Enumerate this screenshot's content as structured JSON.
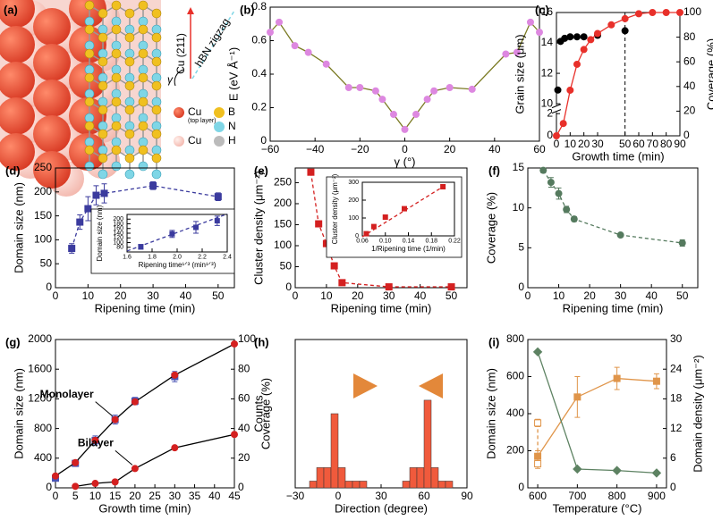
{
  "panel_a": {
    "label": "(a)",
    "cu_direction": "Cu (211)",
    "hbn_direction": "hBN zigzag",
    "angle": "γ",
    "legend": [
      "Cu",
      "(top layer)",
      "B",
      "N",
      "Cu",
      "H"
    ]
  },
  "chart_data": [
    {
      "type": "line",
      "label": "(b)",
      "xlabel": "γ (°)",
      "ylabel": "E (eV Å⁻¹)",
      "xlim": [
        -60,
        60
      ],
      "xticks": [
        {
          "value": -60,
          "label": "−60"
        },
        {
          "value": -40,
          "label": "−40"
        },
        {
          "value": -20,
          "label": "−20"
        },
        0,
        20,
        40,
        60
      ],
      "ylim": [
        0,
        0.8
      ],
      "yticks": [
        0,
        {
          "value": 0.2,
          "label": "0.2"
        },
        {
          "value": 0.4,
          "label": "0.4"
        },
        {
          "value": 0.6,
          "label": "0.6"
        },
        {
          "value": 0.8,
          "label": "0.8"
        }
      ],
      "series": [
        {
          "color": "#dd88e0",
          "line_color": "#7a7a22",
          "marker": "circle",
          "line": true,
          "x": [
            -60,
            -56,
            -49,
            -43,
            -35,
            -25,
            -20,
            -13,
            -10,
            -5,
            0,
            5,
            10,
            13,
            20,
            30,
            45,
            50,
            56,
            60
          ],
          "values": [
            0.65,
            0.71,
            0.57,
            0.53,
            0.46,
            0.32,
            0.32,
            0.3,
            0.25,
            0.16,
            0.07,
            0.16,
            0.25,
            0.3,
            0.32,
            0.31,
            0.52,
            0.53,
            0.71,
            0.65
          ]
        }
      ]
    },
    {
      "type": "line",
      "label": "(c)",
      "xlabel": "Growth time (min)",
      "ylabel": "Grain size (μm)",
      "y2label": "Coverage (%)",
      "y2color": "#e8302a",
      "xlim": [
        0,
        90
      ],
      "xticks": [
        0,
        10,
        20,
        30,
        50,
        60,
        70,
        80,
        90
      ],
      "ylim": [
        0,
        16
      ],
      "ybreak": [
        2,
        10
      ],
      "yticks": [
        0,
        2,
        10,
        12,
        14,
        16
      ],
      "y2lim": [
        0,
        100
      ],
      "y2ticks": [
        0,
        20,
        40,
        60,
        80,
        100
      ],
      "vline": 50,
      "series": [
        {
          "color": "#000000",
          "marker": "circle",
          "x": [
            1,
            3,
            6,
            10,
            15,
            20,
            30,
            50
          ],
          "values": [
            10.9,
            14.1,
            14.3,
            14.4,
            14.4,
            14.4,
            14.5,
            14.8
          ]
        },
        {
          "color": "#e8302a",
          "marker": "circle",
          "line": true,
          "axis": "y2",
          "x": [
            0,
            5,
            10,
            15,
            20,
            25,
            30,
            40,
            50,
            60,
            70,
            80,
            90
          ],
          "values": [
            0,
            10,
            37,
            58,
            70,
            78,
            83,
            90,
            95,
            99,
            100,
            100,
            100
          ]
        }
      ]
    },
    {
      "type": "line",
      "label": "(d)",
      "xlabel": "Ripening time (min)",
      "ylabel": "Domain size (nm)",
      "xlim": [
        0,
        55
      ],
      "xticks": [
        0,
        10,
        20,
        30,
        40,
        50
      ],
      "ylim": [
        0,
        250
      ],
      "yticks": [
        0,
        50,
        100,
        150,
        200,
        250
      ],
      "series": [
        {
          "color": "#3b3b9e",
          "marker": "square",
          "line": true,
          "dash": true,
          "x": [
            5,
            7.5,
            10,
            12.5,
            15,
            30,
            50
          ],
          "values": [
            82,
            137,
            165,
            193,
            197,
            213,
            190
          ],
          "errors": [
            10,
            15,
            25,
            20,
            20,
            8,
            8
          ]
        }
      ],
      "inset": {
        "type": "line",
        "xlabel": "Ripening time¹ᐟ³ (min¹ᐟ³)",
        "ylabel": "Domain size (nm)",
        "xlim": [
          1.6,
          2.4
        ],
        "xticks": [
          {
            "value": 1.6,
            "label": "1.6"
          },
          {
            "value": 1.8,
            "label": "1.8"
          },
          {
            "value": 2,
            "label": "2.0"
          },
          {
            "value": 2.2,
            "label": "2.2"
          },
          {
            "value": 2.4,
            "label": "2.4"
          }
        ],
        "ylim": [
          60,
          220
        ],
        "yticks": [
          80,
          100,
          120,
          140,
          160,
          180,
          200
        ],
        "series": [
          {
            "color": "#3b3b9e",
            "marker": "square",
            "x": [
              1.71,
              1.96,
              2.15,
              2.32
            ],
            "values": [
              82,
              137,
              165,
              193
            ],
            "errors": [
              10,
              15,
              25,
              20
            ]
          },
          {
            "color": "#3b3b9e",
            "line": true,
            "dash": true,
            "x": [
              1.6,
              2.4
            ],
            "values": [
              64,
              222
            ]
          }
        ]
      }
    },
    {
      "type": "line",
      "label": "(e)",
      "xlabel": "Ripening time (min)",
      "ylabel": "Cluster density (μm⁻²)",
      "xlim": [
        0,
        55
      ],
      "xticks": [
        0,
        10,
        20,
        30,
        40,
        50
      ],
      "ylim": [
        0,
        285
      ],
      "yticks": [
        0,
        50,
        100,
        150,
        200,
        250
      ],
      "series": [
        {
          "color": "#d42020",
          "marker": "square",
          "line": true,
          "dash": true,
          "x": [
            5,
            7.5,
            10,
            12.5,
            15,
            30,
            50
          ],
          "values": [
            275,
            152,
            105,
            52,
            12,
            2,
            2
          ]
        }
      ],
      "inset": {
        "type": "line",
        "xlabel": "1/Ripening time (1/min)",
        "ylabel": "Cluster density (μm⁻²)",
        "xlim": [
          0.06,
          0.22
        ],
        "xticks": [
          {
            "value": 0.06,
            "label": "0.06"
          },
          {
            "value": 0.1,
            "label": "0.10"
          },
          {
            "value": 0.14,
            "label": "0.14"
          },
          {
            "value": 0.18,
            "label": "0.18"
          },
          {
            "value": 0.22,
            "label": "0.22"
          }
        ],
        "ylim": [
          0,
          300
        ],
        "yticks": [
          0,
          100,
          200,
          300
        ],
        "series": [
          {
            "color": "#d42020",
            "marker": "square",
            "x": [
              0.067,
              0.08,
              0.1,
              0.133,
              0.2
            ],
            "values": [
              12,
              52,
              105,
              152,
              275
            ]
          },
          {
            "color": "#d42020",
            "line": true,
            "dash": true,
            "x": [
              0.06,
              0.2
            ],
            "values": [
              -5,
              275
            ]
          }
        ]
      }
    },
    {
      "type": "line",
      "label": "(f)",
      "xlabel": "Ripening time (min)",
      "ylabel": "Coverage (%)",
      "xlim": [
        0,
        55
      ],
      "xticks": [
        0,
        10,
        20,
        30,
        40,
        50
      ],
      "ylim": [
        0,
        15
      ],
      "yticks": [
        0,
        5,
        10,
        15
      ],
      "series": [
        {
          "color": "#557a5e",
          "marker": "circle",
          "line": true,
          "dash": true,
          "x": [
            5,
            7.5,
            10,
            12.5,
            15,
            30,
            50
          ],
          "values": [
            14.7,
            13.2,
            11.8,
            9.8,
            8.6,
            6.6,
            5.6
          ],
          "errors": [
            0.3,
            0.6,
            0.7,
            0.4,
            0.3,
            0.2,
            0.4
          ]
        }
      ]
    },
    {
      "type": "line",
      "label": "(g)",
      "xlabel": "Growth time (min)",
      "ylabel": "Domain size (nm)",
      "ycolor": "#4a55b5",
      "y2label": "Coverage (%)",
      "y2color": "#d42020",
      "xlim": [
        0,
        45
      ],
      "xticks": [
        0,
        5,
        10,
        15,
        20,
        25,
        30,
        35,
        40,
        45
      ],
      "ylim": [
        0,
        2000
      ],
      "yticks": [
        0,
        400,
        800,
        1200,
        1600,
        2000
      ],
      "y2lim": [
        0,
        100
      ],
      "y2ticks": [
        0,
        20,
        40,
        60,
        80,
        100
      ],
      "series": [
        {
          "color": "#4a55b5",
          "marker": "square",
          "x": [
            0,
            5,
            10,
            15,
            20,
            30
          ],
          "values": [
            130,
            330,
            640,
            920,
            1170,
            1500
          ],
          "errors": [
            30,
            40,
            60,
            60,
            50,
            70
          ]
        },
        {
          "name": "Monolayer",
          "color": "#d42020",
          "line_color": "#000000",
          "marker": "circle",
          "line": true,
          "axis": "y2",
          "x": [
            0,
            5,
            10,
            15,
            20,
            30,
            45
          ],
          "values": [
            8,
            17,
            32,
            46,
            58,
            76,
            97
          ]
        },
        {
          "name": "Bilayer",
          "color": "#d42020",
          "line_color": "#000000",
          "marker": "circle",
          "line": true,
          "axis": "y2",
          "x": [
            5,
            10,
            15,
            20,
            30,
            45
          ],
          "values": [
            1,
            3,
            4,
            13,
            27,
            36
          ]
        }
      ]
    },
    {
      "type": "histogram",
      "label": "(h)",
      "xlabel": "Direction (degree)",
      "ylabel": "Counts",
      "color": "#f05a3c",
      "xlim": [
        -30,
        90
      ],
      "xticks": [
        {
          "value": -30,
          "label": "−30"
        },
        0,
        30,
        60,
        90
      ],
      "ylim": [
        0,
        22
      ],
      "bins": [
        -20,
        -15,
        -10,
        -5,
        0,
        5,
        10,
        15,
        20,
        25,
        30,
        35,
        40,
        45,
        50,
        55,
        60,
        65,
        70,
        75,
        80
      ],
      "counts": [
        1,
        3,
        3,
        11,
        3,
        1,
        1,
        1,
        0,
        0,
        0,
        0,
        0,
        1,
        3,
        3,
        13,
        3,
        1,
        1
      ]
    },
    {
      "type": "line",
      "label": "(i)",
      "xlabel": "Temperature (°C)",
      "ylabel": "Domain size (nm)",
      "ycolor": "#e0954a",
      "y2label": "Domain density (μm⁻²)",
      "y2color": "#5d8262",
      "xlim": [
        575,
        925
      ],
      "xticks": [
        600,
        700,
        800,
        900
      ],
      "ylim": [
        0,
        800
      ],
      "yticks": [
        0,
        200,
        400,
        600,
        800
      ],
      "y2lim": [
        0,
        30
      ],
      "y2ticks": [
        0,
        6,
        12,
        18,
        24,
        30
      ],
      "series": [
        {
          "color": "#e0954a",
          "marker": "square",
          "line": true,
          "x": [
            600,
            700,
            800,
            900
          ],
          "values": [
            170,
            490,
            590,
            575
          ],
          "errors": [
            30,
            110,
            60,
            40
          ]
        },
        {
          "color": "#e0954a",
          "marker": "square",
          "hollow": true,
          "line": true,
          "dash": true,
          "x": [
            600,
            600
          ],
          "values": [
            350,
            130
          ],
          "errors": [
            20,
            25
          ]
        },
        {
          "color": "#5d8262",
          "marker": "diamond",
          "line": true,
          "axis": "y2",
          "x": [
            600,
            700,
            800,
            900
          ],
          "values": [
            27.5,
            3.8,
            3.5,
            3
          ]
        }
      ]
    }
  ]
}
